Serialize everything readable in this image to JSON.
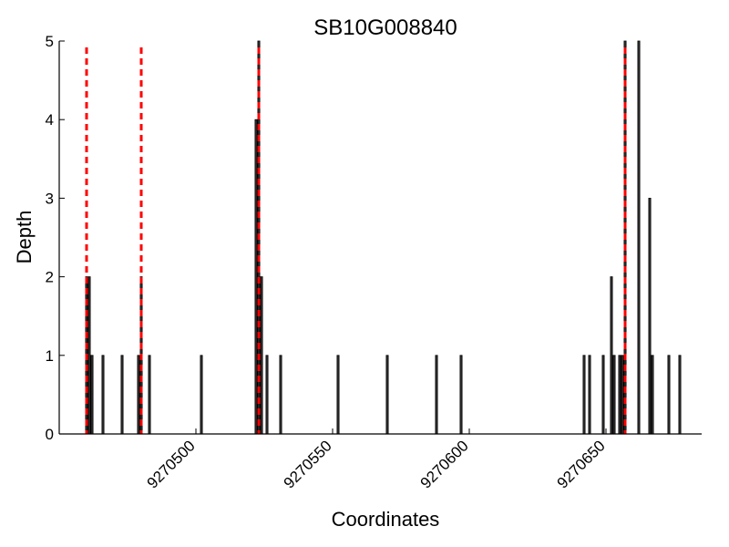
{
  "chart_data": {
    "type": "bar",
    "title": "SB10G008840",
    "xlabel": "Coordinates",
    "ylabel": "Depth",
    "xlim": [
      9270450,
      9270685
    ],
    "ylim": [
      0,
      5
    ],
    "x_ticks": [
      9270500,
      9270550,
      9270600,
      9270650
    ],
    "y_ticks": [
      0,
      1,
      2,
      3,
      4,
      5
    ],
    "grid": false,
    "bar_color": "#333333",
    "bar_edge_color": "#000000",
    "marker_line_color": "#ff0000",
    "bars": [
      {
        "x": 9270460,
        "y": 2
      },
      {
        "x": 9270461,
        "y": 2
      },
      {
        "x": 9270462,
        "y": 1
      },
      {
        "x": 9270466,
        "y": 1
      },
      {
        "x": 9270473,
        "y": 1
      },
      {
        "x": 9270479,
        "y": 1
      },
      {
        "x": 9270480,
        "y": 2
      },
      {
        "x": 9270483,
        "y": 1
      },
      {
        "x": 9270502,
        "y": 1
      },
      {
        "x": 9270522,
        "y": 4
      },
      {
        "x": 9270523,
        "y": 5
      },
      {
        "x": 9270524,
        "y": 2
      },
      {
        "x": 9270526,
        "y": 1
      },
      {
        "x": 9270531,
        "y": 1
      },
      {
        "x": 9270552,
        "y": 1
      },
      {
        "x": 9270570,
        "y": 1
      },
      {
        "x": 9270588,
        "y": 1
      },
      {
        "x": 9270597,
        "y": 1
      },
      {
        "x": 9270642,
        "y": 1
      },
      {
        "x": 9270644,
        "y": 1
      },
      {
        "x": 9270649,
        "y": 1
      },
      {
        "x": 9270652,
        "y": 2
      },
      {
        "x": 9270653,
        "y": 1
      },
      {
        "x": 9270655,
        "y": 1
      },
      {
        "x": 9270656,
        "y": 1
      },
      {
        "x": 9270657,
        "y": 5
      },
      {
        "x": 9270662,
        "y": 5
      },
      {
        "x": 9270666,
        "y": 3
      },
      {
        "x": 9270667,
        "y": 1
      },
      {
        "x": 9270673,
        "y": 1
      },
      {
        "x": 9270677,
        "y": 1
      }
    ],
    "marker_lines": [
      9270460,
      9270480,
      9270523,
      9270657
    ]
  }
}
